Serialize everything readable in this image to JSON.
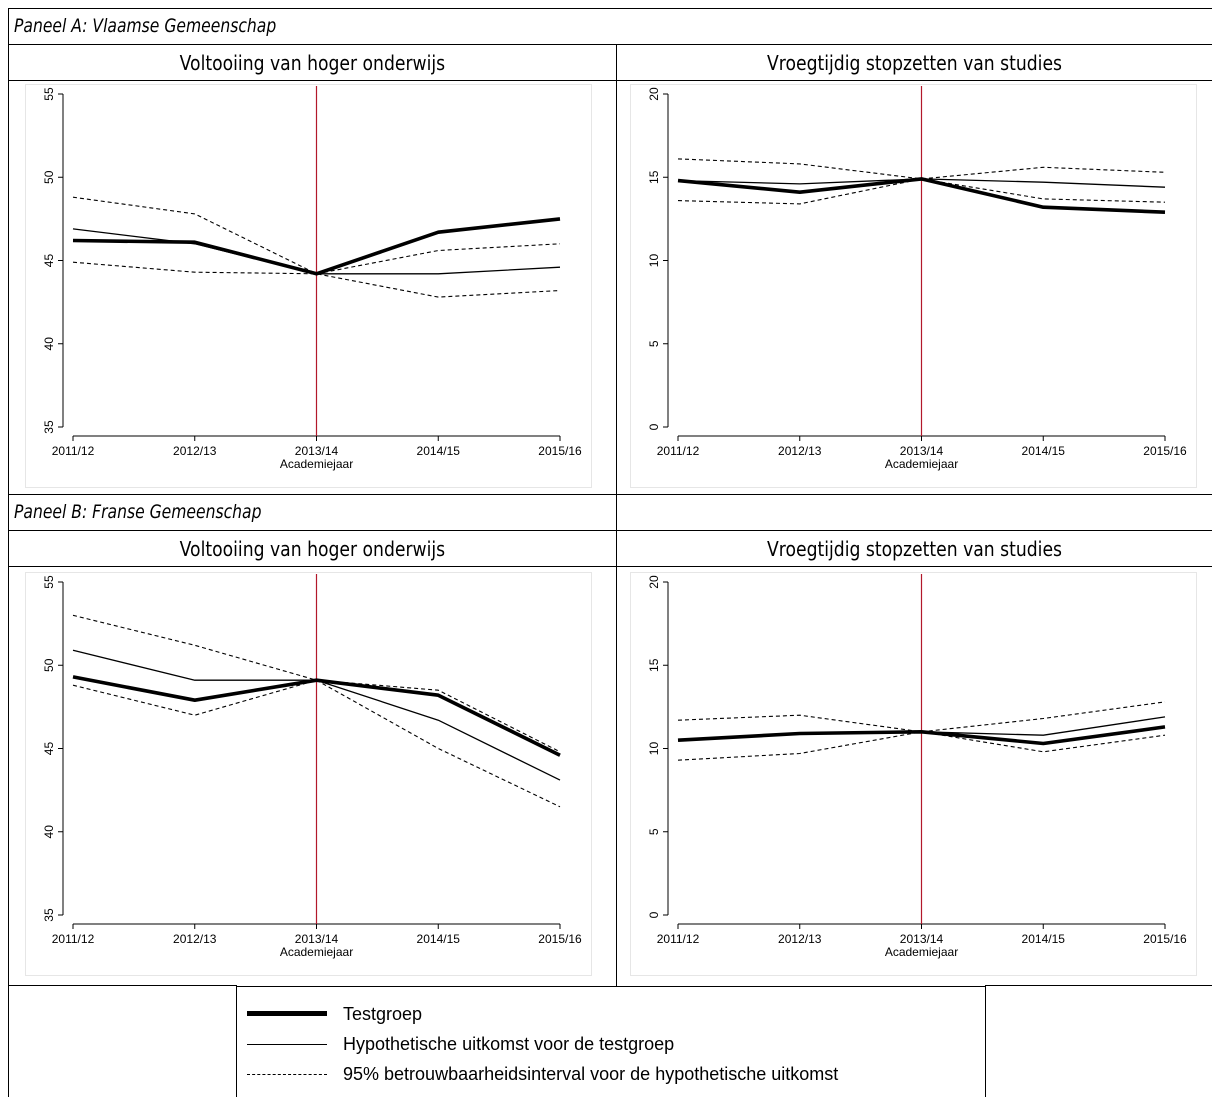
{
  "panel_a": {
    "title": "Paneel A: Vlaamse Gemeenschap",
    "left_title": "Voltooiing van hoger onderwijs",
    "right_title": "Vroegtijdig stopzetten van studies"
  },
  "panel_b": {
    "title": "Paneel B: Franse Gemeenschap",
    "left_title": "Voltooiing van hoger onderwijs",
    "right_title": "Vroegtijdig stopzetten van studies"
  },
  "legend": {
    "items": [
      "Testgroep",
      "Hypothetische uitkomst voor de testgroep",
      "95% betrouwbaarheidsinterval voor de hypothetische uitkomst"
    ]
  },
  "colors": {
    "reference_line": "#b2182b",
    "series": "#000000"
  },
  "chart_data": [
    {
      "type": "line",
      "panel": "Paneel A: Vlaamse Gemeenschap",
      "title": "Voltooiing van hoger onderwijs",
      "xlabel": "Academiejaar",
      "categories": [
        "2011/12",
        "2012/13",
        "2013/14",
        "2014/15",
        "2015/16"
      ],
      "yticks": [
        35,
        40,
        45,
        50,
        55
      ],
      "ylim": [
        35,
        55
      ],
      "reference_x": "2013/14",
      "series": [
        {
          "name": "Testgroep",
          "values": [
            46.2,
            46.1,
            44.2,
            46.7,
            47.5
          ]
        },
        {
          "name": "Hypothetische uitkomst voor de testgroep",
          "values": [
            46.9,
            46.0,
            44.2,
            44.2,
            44.6
          ]
        },
        {
          "name": "95% betrouwbaarheidsinterval voor de hypothetische uitkomst",
          "values": [
            48.8,
            47.8,
            44.2,
            45.6,
            46.0
          ]
        },
        {
          "name": "95% betrouwbaarheidsinterval voor de hypothetische uitkomst",
          "values": [
            44.9,
            44.3,
            44.2,
            42.8,
            43.2
          ]
        }
      ],
      "grid": false
    },
    {
      "type": "line",
      "panel": "Paneel A: Vlaamse Gemeenschap",
      "title": "Vroegtijdig stopzetten van studies",
      "xlabel": "Academiejaar",
      "categories": [
        "2011/12",
        "2012/13",
        "2013/14",
        "2014/15",
        "2015/16"
      ],
      "yticks": [
        0,
        5,
        10,
        15,
        20
      ],
      "ylim": [
        0,
        20
      ],
      "reference_x": "2013/14",
      "series": [
        {
          "name": "Testgroep",
          "values": [
            14.8,
            14.1,
            14.9,
            13.2,
            12.9
          ]
        },
        {
          "name": "Hypothetische uitkomst voor de testgroep",
          "values": [
            14.8,
            14.6,
            14.9,
            14.7,
            14.4
          ]
        },
        {
          "name": "95% betrouwbaarheidsinterval voor de hypothetische uitkomst",
          "values": [
            16.1,
            15.8,
            14.9,
            15.6,
            15.3
          ]
        },
        {
          "name": "95% betrouwbaarheidsinterval voor de hypothetische uitkomst",
          "values": [
            13.6,
            13.4,
            14.9,
            13.7,
            13.5
          ]
        }
      ],
      "grid": false
    },
    {
      "type": "line",
      "panel": "Paneel B: Franse Gemeenschap",
      "title": "Voltooiing van hoger onderwijs",
      "xlabel": "Academiejaar",
      "categories": [
        "2011/12",
        "2012/13",
        "2013/14",
        "2014/15",
        "2015/16"
      ],
      "yticks": [
        35,
        40,
        45,
        50,
        55
      ],
      "ylim": [
        35,
        55
      ],
      "reference_x": "2013/14",
      "series": [
        {
          "name": "Testgroep",
          "values": [
            49.3,
            47.9,
            49.1,
            48.2,
            44.6
          ]
        },
        {
          "name": "Hypothetische uitkomst voor de testgroep",
          "values": [
            50.9,
            49.1,
            49.1,
            46.7,
            43.1
          ]
        },
        {
          "name": "95% betrouwbaarheidsinterval voor de hypothetische uitkomst",
          "values": [
            53.0,
            51.2,
            49.1,
            48.5,
            44.8
          ]
        },
        {
          "name": "95% betrouwbaarheidsinterval voor de hypothetische uitkomst",
          "values": [
            48.8,
            47.0,
            49.1,
            45.0,
            41.5
          ]
        }
      ],
      "grid": false
    },
    {
      "type": "line",
      "panel": "Paneel B: Franse Gemeenschap",
      "title": "Vroegtijdig stopzetten van studies",
      "xlabel": "Academiejaar",
      "categories": [
        "2011/12",
        "2012/13",
        "2013/14",
        "2014/15",
        "2015/16"
      ],
      "yticks": [
        0,
        5,
        10,
        15,
        20
      ],
      "ylim": [
        0,
        20
      ],
      "reference_x": "2013/14",
      "series": [
        {
          "name": "Testgroep",
          "values": [
            10.5,
            10.9,
            11.0,
            10.3,
            11.3
          ]
        },
        {
          "name": "Hypothetische uitkomst voor de testgroep",
          "values": [
            10.5,
            10.9,
            11.0,
            10.8,
            11.9
          ]
        },
        {
          "name": "95% betrouwbaarheidsinterval voor de hypothetische uitkomst",
          "values": [
            11.7,
            12.0,
            11.0,
            11.8,
            12.8
          ]
        },
        {
          "name": "95% betrouwbaarheidsinterval voor de hypothetische uitkomst",
          "values": [
            9.3,
            9.7,
            11.0,
            9.8,
            10.8
          ]
        }
      ],
      "grid": false
    }
  ]
}
